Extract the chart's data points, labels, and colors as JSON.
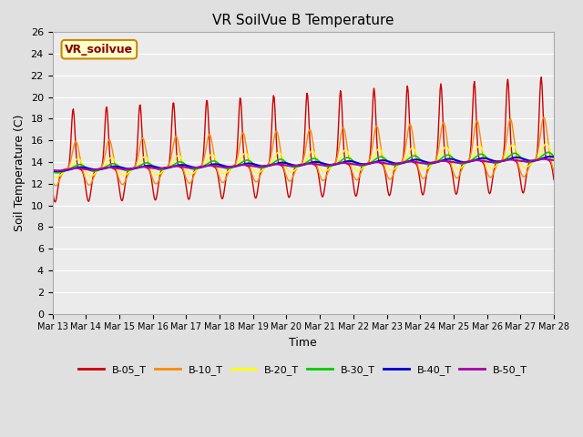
{
  "title": "VR SoilVue B Temperature",
  "xlabel": "Time",
  "ylabel": "Soil Temperature (C)",
  "ylim": [
    0,
    26
  ],
  "yticks": [
    0,
    2,
    4,
    6,
    8,
    10,
    12,
    14,
    16,
    18,
    20,
    22,
    24,
    26
  ],
  "legend_label": "VR_soilvue",
  "series_labels": [
    "B-05_T",
    "B-10_T",
    "B-20_T",
    "B-30_T",
    "B-40_T",
    "B-50_T"
  ],
  "series_colors": [
    "#cc0000",
    "#ff8800",
    "#ffff00",
    "#00cc00",
    "#0000cc",
    "#aa00aa"
  ],
  "background_color": "#e0e0e0",
  "plot_bg_color": "#ebebeb",
  "grid_color": "#ffffff",
  "date_start": 13,
  "date_end": 28,
  "tick_dates": [
    13,
    14,
    15,
    16,
    17,
    18,
    19,
    20,
    21,
    22,
    23,
    24,
    25,
    26,
    27,
    28
  ]
}
